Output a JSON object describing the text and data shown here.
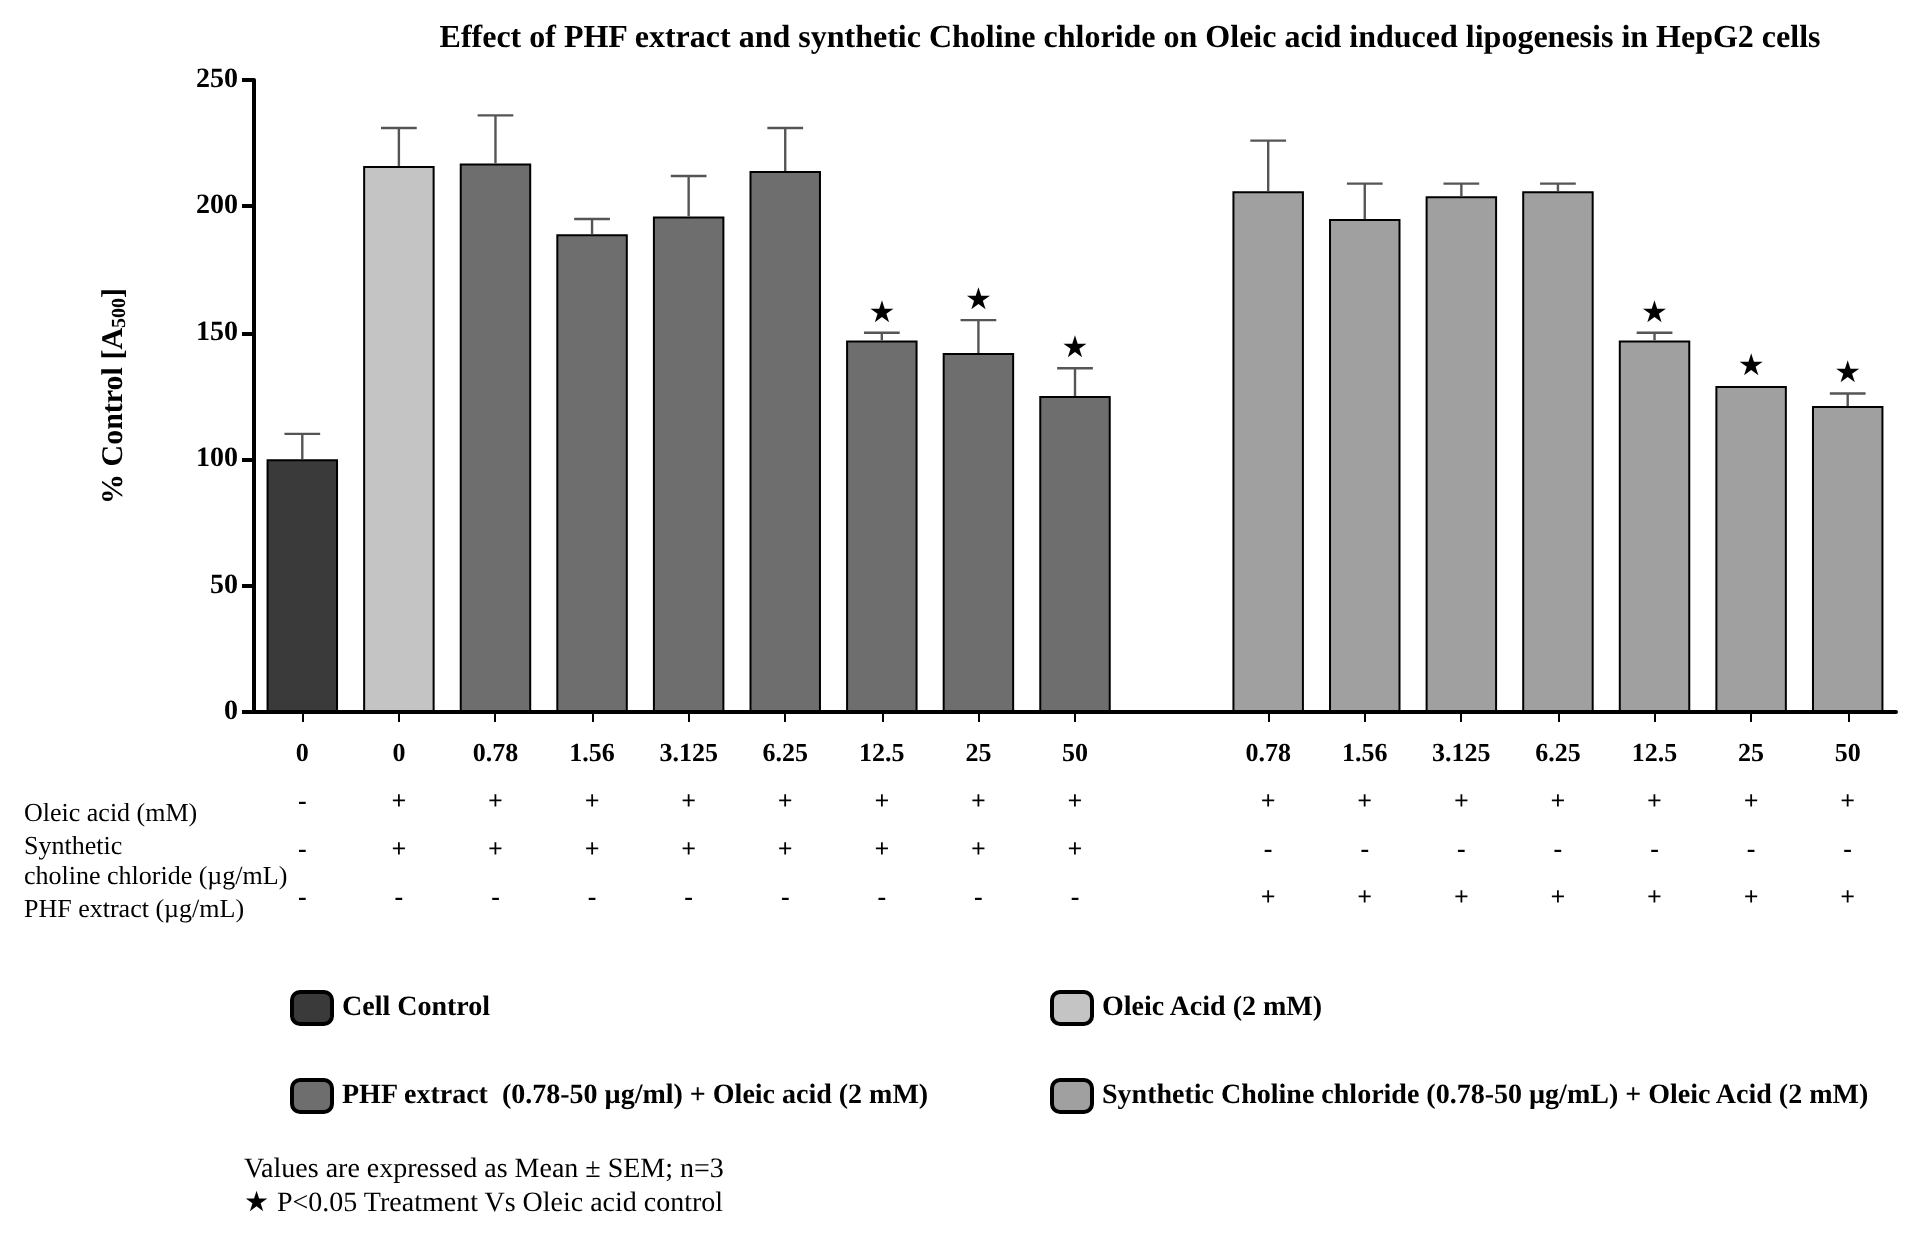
{
  "chart_data": {
    "type": "bar",
    "title": "Effect of PHF extract and synthetic Choline chloride on Oleic acid induced lipogenesis in HepG2 cells",
    "ylabel": "% Control [A$_{500}$]",
    "categories": [
      "0\n-\n-\n-",
      "0\n+\n+\n-",
      "0.78\n+\n+\n-",
      "1.56\n+\n+\n-",
      "3.125\n+\n+\n-",
      "6.25\n+\n+\n-",
      "12.5\n+\n+\n-",
      "25\n+\n+\n-",
      "50\n+\n+\n-",
      null,
      "0.78\n+\n-\n+",
      "1.56\n+\n-\n+",
      "3.125\n+\n-\n+",
      "6.25\n+\n-\n+",
      "12.5\n+\n-\n+",
      "25\n+\n-\n+",
      "50\n+\n-\n+"
    ],
    "series": [
      {
        "name": "Cell Control",
        "color": "#3a3a3a",
        "values": [
          100,
          null,
          null,
          null,
          null,
          null,
          null,
          null,
          null,
          null,
          null,
          null,
          null,
          null,
          null,
          null,
          null
        ],
        "errors": [
          [
            100,
            110
          ],
          null,
          null,
          null,
          null,
          null,
          null,
          null,
          null,
          null,
          null,
          null,
          null,
          null,
          null,
          null,
          null
        ]
      },
      {
        "name": "Oleic Acid (2 mM)",
        "color": "#c4c4c4",
        "values": [
          null,
          216,
          null,
          null,
          null,
          null,
          null,
          null,
          null,
          null,
          null,
          null,
          null,
          null,
          null,
          null,
          null
        ],
        "errors": [
          null,
          [
            216,
            231
          ],
          null,
          null,
          null,
          null,
          null,
          null,
          null,
          null,
          null,
          null,
          null,
          null,
          null,
          null,
          null
        ]
      },
      {
        "name": "PHF extract  (0.78-50 µg/ml) + Oleic acid (2 mM)",
        "color": "#6e6e6e",
        "values": [
          null,
          null,
          217,
          189,
          196,
          214,
          147,
          142,
          125,
          null,
          null,
          null,
          null,
          null,
          null,
          null,
          null
        ],
        "errors": [
          null,
          null,
          [
            217,
            236
          ],
          [
            189,
            195
          ],
          [
            196,
            212
          ],
          [
            214,
            231
          ],
          [
            147,
            150
          ],
          [
            142,
            155
          ],
          [
            125,
            136
          ],
          null,
          null,
          null,
          null,
          null,
          null,
          null,
          null
        ],
        "value_labels": [
          null,
          null,
          null,
          null,
          null,
          null,
          "★",
          "★",
          "★",
          null,
          null,
          null,
          null,
          null,
          null,
          null,
          null
        ]
      },
      {
        "name": "Synthetic Choline chloride (0.78-50 µg/mL) + Oleic Acid (2 mM)",
        "color": "#a0a0a0",
        "values": [
          null,
          null,
          null,
          null,
          null,
          null,
          null,
          null,
          null,
          null,
          206,
          195,
          204,
          206,
          147,
          129,
          121
        ],
        "errors": [
          null,
          null,
          null,
          null,
          null,
          null,
          null,
          null,
          null,
          null,
          [
            206,
            226
          ],
          [
            195,
            209
          ],
          [
            204,
            209
          ],
          [
            206,
            209
          ],
          [
            147,
            150
          ],
          null,
          [
            121,
            126
          ]
        ],
        "value_labels": [
          null,
          null,
          null,
          null,
          null,
          null,
          null,
          null,
          null,
          null,
          null,
          null,
          null,
          null,
          "★",
          "★",
          "★"
        ]
      }
    ],
    "ylim": [
      0,
      250
    ],
    "yticks": [
      0,
      50,
      100,
      150,
      200,
      250
    ],
    "grid": false,
    "legend": "bottom",
    "annotations": [
      "Oleic acid (mM)",
      "Synthetic\ncholine chloride (µg/mL)",
      "PHF extract (µg/mL)",
      "Values are expressed as Mean ± SEM; n=3",
      "★ P<0.05 Treatment Vs Oleic acid control"
    ]
  }
}
